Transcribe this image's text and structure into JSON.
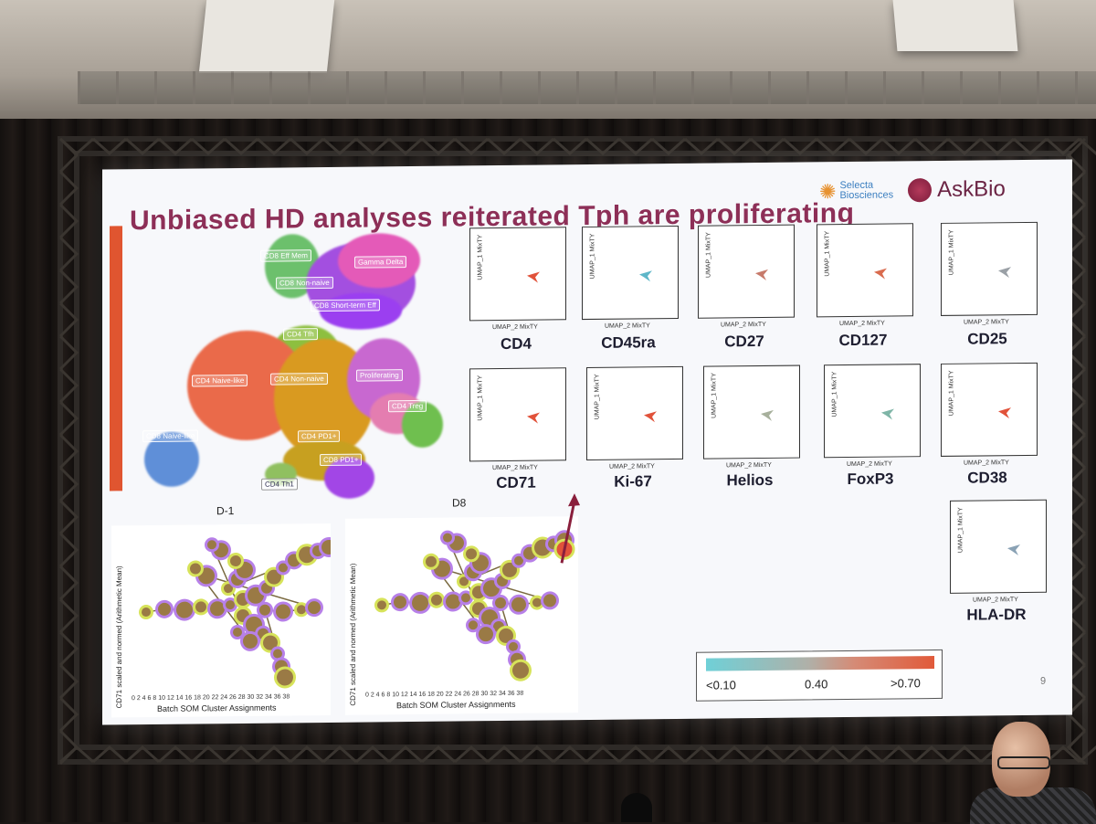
{
  "slide": {
    "title": "Unbiased HD analyses reiterated Tph are proliferating",
    "logo_selecta_line1": "Selecta",
    "logo_selecta_line2": "Biosciences",
    "logo_askbio": "AskBio",
    "page_number": "9"
  },
  "umap": {
    "clusters": [
      {
        "label": "CD8 Eff Mem"
      },
      {
        "label": "Gamma Delta"
      },
      {
        "label": "CD8 Non-naive"
      },
      {
        "label": "CD8 Short-term Eff"
      },
      {
        "label": "CD4 Tfh"
      },
      {
        "label": "CD4 Naive-like"
      },
      {
        "label": "CD4 Non-naive"
      },
      {
        "label": "Proliferating"
      },
      {
        "label": "CD4 Treg"
      },
      {
        "label": "CD8 Naive-like"
      },
      {
        "label": "CD4 PD1+"
      },
      {
        "label": "CD8 PD1+"
      },
      {
        "label": "CD4 Th1"
      }
    ]
  },
  "markers": {
    "y_axis": "UMAP_1 MixTY",
    "x_axis": "UMAP_2 MixTY",
    "row1": [
      "CD4",
      "CD45ra",
      "CD27",
      "CD127",
      "CD25"
    ],
    "row2": [
      "CD71",
      "Ki-67",
      "Helios",
      "FoxP3",
      "CD38"
    ],
    "row3": [
      "HLA-DR"
    ]
  },
  "som": {
    "left_title": "D-1",
    "right_title": "D8",
    "y_label": "CD71 scaled and normed (Arithmetic Mean)",
    "x_label": "Batch SOM Cluster Assignments",
    "x_ticks": "0 2 4 6 8 10 12 14 16 18 20 22 24 26 28 30 32 34 36 38",
    "y_ticks": [
      "37",
      "35",
      "34",
      "33",
      "31",
      "29",
      "28",
      "25",
      "23",
      "21",
      "20",
      "17",
      "15",
      "12",
      "10",
      "7",
      "4",
      "2"
    ]
  },
  "legend": {
    "low": "<0.10",
    "mid": "0.40",
    "high": ">0.70"
  },
  "colors": {
    "title": "#8d2f57",
    "accent_bar": "#e05530",
    "low": "#6fd0d7",
    "high": "#e15a3a"
  }
}
